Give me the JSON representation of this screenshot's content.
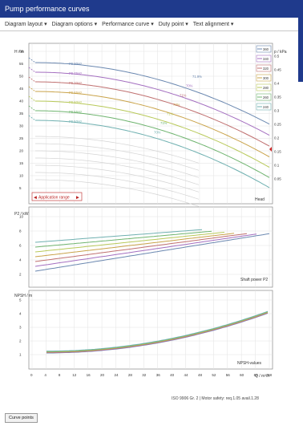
{
  "window": {
    "title": "Pump performance curves"
  },
  "toolbar": {
    "items": [
      {
        "label": "Diagram layout"
      },
      {
        "label": "Diagram options"
      },
      {
        "label": "Performance curve"
      },
      {
        "label": "Duty point"
      },
      {
        "label": "Text alignment"
      }
    ]
  },
  "head_panel": {
    "y_label": "H / m",
    "y_ticks": [
      "60",
      "55",
      "50",
      "45",
      "40",
      "35",
      "30",
      "25",
      "20",
      "15",
      "10",
      "5"
    ],
    "right_label": "p / kPa",
    "right_ticks": [
      "0.5",
      "0.45",
      "0.4",
      "0.35",
      "0.3",
      "0.25",
      "0.2",
      "0.15",
      "0.1",
      "0.05"
    ],
    "curve_labels": [
      "P0 80Hz",
      "P0 75Hz",
      "P0 70Hz",
      "P0 65Hz",
      "P0 60Hz",
      "P0 55Hz",
      "P0 50Hz"
    ],
    "eff_labels": [
      "71.9%",
      "70%",
      "71%",
      "70%",
      "71%",
      "71%",
      "70%"
    ],
    "legend": [
      "360",
      "340",
      "320",
      "300",
      "280",
      "260",
      "240"
    ],
    "app_range": "Application range",
    "corner_label": "Head"
  },
  "power_panel": {
    "y_label": "P2 / kW",
    "y_ticks": [
      "10",
      "8",
      "6",
      "4",
      "2"
    ],
    "corner_label": "Shaft power P2"
  },
  "npsh_panel": {
    "y_label": "NPSH / m",
    "y_ticks": [
      "5",
      "4",
      "3",
      "2",
      "1"
    ],
    "corner_label": "NPSH-values"
  },
  "x_axis": {
    "label": "Q / m³/h",
    "ticks": [
      "0",
      "4",
      "8",
      "12",
      "16",
      "20",
      "24",
      "28",
      "32",
      "36",
      "40",
      "44",
      "48",
      "52",
      "56",
      "60",
      "64",
      "68"
    ]
  },
  "footer": {
    "note": "ISO 9906 Gr. 2 | Motor safety: req.1.05 avail.1.28",
    "tab": "Curve points"
  },
  "colors": [
    "#6b88b0",
    "#a46fc0",
    "#c07070",
    "#c9a34a",
    "#b8c95a",
    "#6fb46f",
    "#6fb0b0"
  ]
}
